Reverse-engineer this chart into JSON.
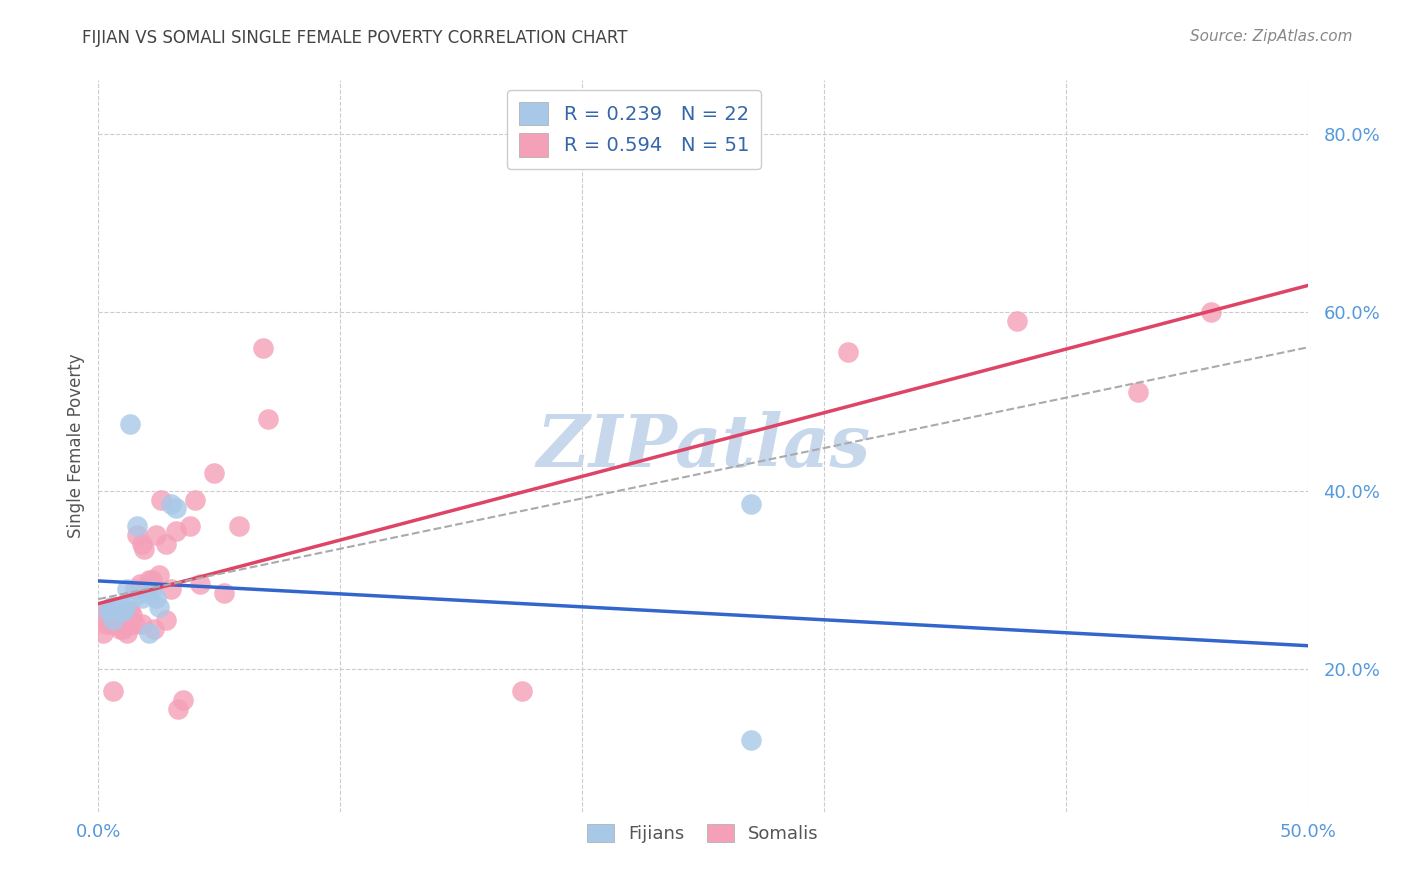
{
  "title": "FIJIAN VS SOMALI SINGLE FEMALE POVERTY CORRELATION CHART",
  "source": "Source: ZipAtlas.com",
  "ylabel": "Single Female Poverty",
  "xmin": 0.0,
  "xmax": 0.5,
  "ymin": 0.04,
  "ymax": 0.86,
  "fijian_R": "0.239",
  "fijian_N": "22",
  "somali_R": "0.594",
  "somali_N": "51",
  "fijian_color": "#a8c8e8",
  "somali_color": "#f4a0b8",
  "fijian_line_color": "#3366cc",
  "somali_line_color": "#dd4466",
  "dash_line_color": "#aaaaaa",
  "watermark_color": "#c8d8ec",
  "grid_color": "#cccccc",
  "title_color": "#444444",
  "axis_label_color": "#5599dd",
  "right_yticks": [
    0.2,
    0.4,
    0.6,
    0.8
  ],
  "right_yticklabels": [
    "20.0%",
    "40.0%",
    "60.0%",
    "80.0%"
  ],
  "xticks": [
    0.0,
    0.1,
    0.2,
    0.3,
    0.4,
    0.5
  ],
  "fijian_x": [
    0.004,
    0.005,
    0.006,
    0.007,
    0.008,
    0.009,
    0.01,
    0.011,
    0.012,
    0.013,
    0.015,
    0.016,
    0.018,
    0.02,
    0.021,
    0.022,
    0.024,
    0.025,
    0.03,
    0.032,
    0.27,
    0.27
  ],
  "fijian_y": [
    0.265,
    0.27,
    0.255,
    0.27,
    0.268,
    0.268,
    0.265,
    0.268,
    0.29,
    0.475,
    0.282,
    0.36,
    0.28,
    0.285,
    0.24,
    0.288,
    0.28,
    0.27,
    0.385,
    0.38,
    0.12,
    0.385
  ],
  "somali_x": [
    0.001,
    0.002,
    0.003,
    0.004,
    0.005,
    0.005,
    0.006,
    0.007,
    0.008,
    0.009,
    0.01,
    0.01,
    0.011,
    0.012,
    0.012,
    0.013,
    0.013,
    0.014,
    0.015,
    0.015,
    0.016,
    0.017,
    0.018,
    0.018,
    0.019,
    0.02,
    0.021,
    0.022,
    0.023,
    0.024,
    0.025,
    0.026,
    0.028,
    0.028,
    0.03,
    0.032,
    0.033,
    0.035,
    0.038,
    0.04,
    0.042,
    0.048,
    0.052,
    0.058,
    0.068,
    0.07,
    0.175,
    0.31,
    0.38,
    0.43,
    0.46
  ],
  "somali_y": [
    0.26,
    0.24,
    0.25,
    0.265,
    0.26,
    0.25,
    0.175,
    0.25,
    0.26,
    0.245,
    0.255,
    0.245,
    0.265,
    0.255,
    0.24,
    0.265,
    0.25,
    0.26,
    0.29,
    0.25,
    0.35,
    0.295,
    0.34,
    0.25,
    0.335,
    0.29,
    0.3,
    0.3,
    0.245,
    0.35,
    0.305,
    0.39,
    0.34,
    0.255,
    0.29,
    0.355,
    0.155,
    0.165,
    0.36,
    0.39,
    0.295,
    0.42,
    0.285,
    0.36,
    0.56,
    0.48,
    0.175,
    0.555,
    0.59,
    0.51,
    0.6
  ]
}
